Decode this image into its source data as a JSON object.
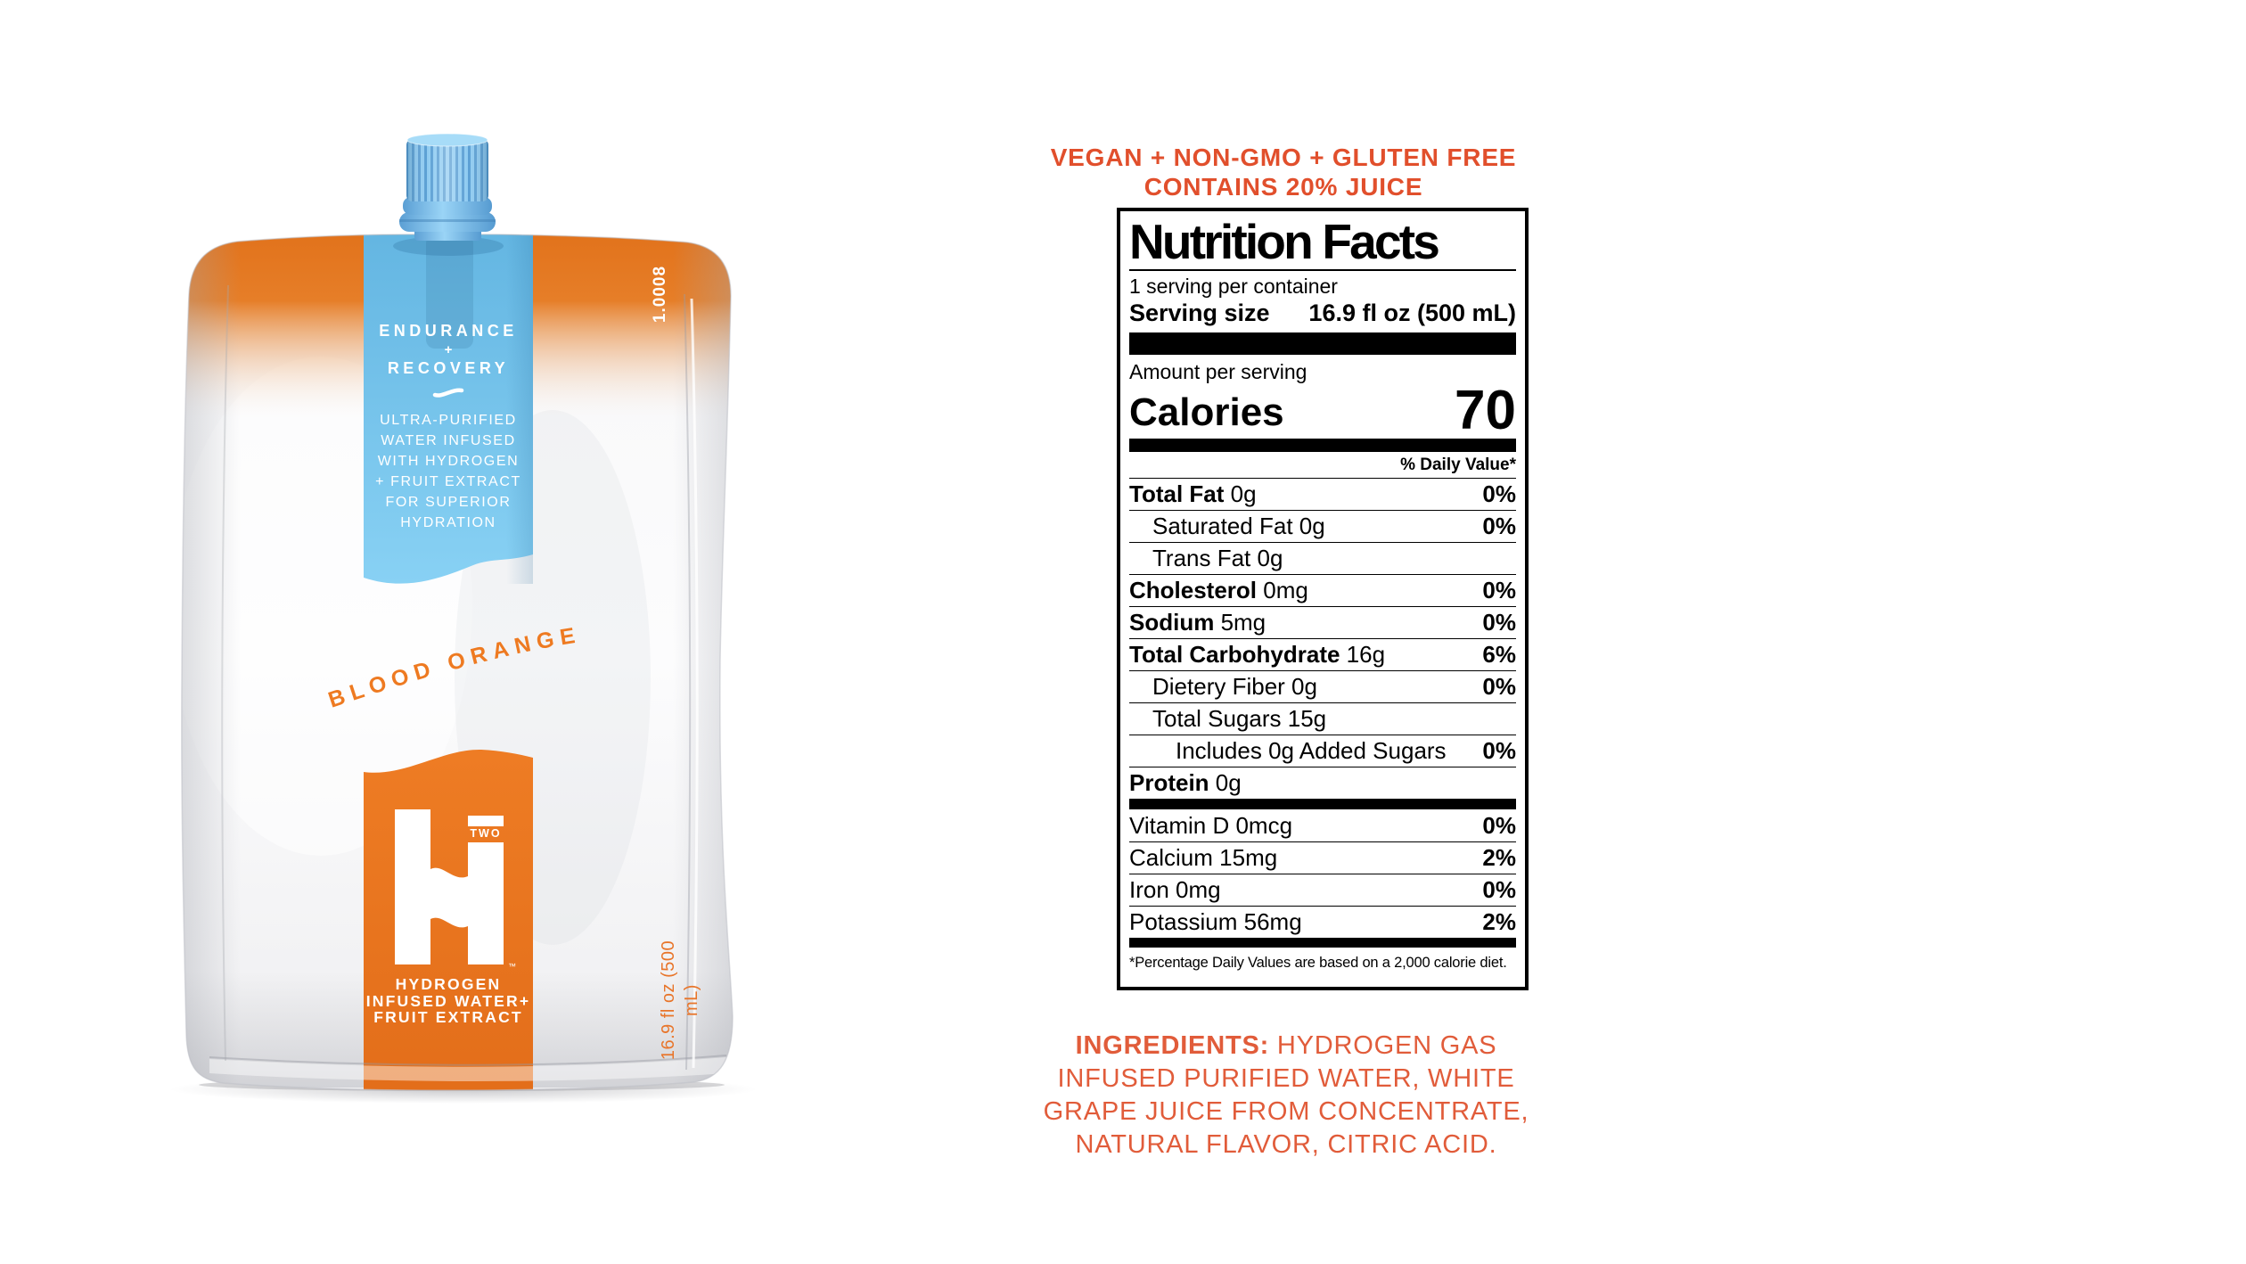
{
  "colors": {
    "brand_orange": "#EC7420",
    "flavor_orange": "#EE7A21",
    "volume_orange": "#E8752A",
    "coral_heading": "#E14F2C",
    "coral_ingredients": "#E15C3A",
    "strip_blue": "#7BC4E8",
    "cap_blue": "#83C6EF",
    "label_black": "#000000"
  },
  "pouch": {
    "code": "1.0008",
    "volume": "16.9 fl oz (500 mL)",
    "panel_title_line1": "ENDURANCE",
    "panel_title_plus": "+",
    "panel_title_line2": "RECOVERY",
    "panel_description": "ULTRA-PURIFIED\nWATER INFUSED\nWITH HYDROGEN\n+ FRUIT EXTRACT\nFOR SUPERIOR\nHYDRATION",
    "flavor": "BLOOD ORANGE",
    "logo_two": "TWO",
    "logo_tm": "™",
    "tagline": "HYDROGEN\nINFUSED WATER+\nFRUIT EXTRACT"
  },
  "header": {
    "line1": "VEGAN + NON-GMO + GLUTEN FREE",
    "line2": "CONTAINS 20% JUICE"
  },
  "nutrition": {
    "title": "Nutrition Facts",
    "servings_per_container": "1 serving per container",
    "serving_size_label": "Serving size",
    "serving_size_value": "16.9 fl oz (500 mL)",
    "amount_per_serving": "Amount per serving",
    "calories_label": "Calories",
    "calories_value": "70",
    "daily_value_header": "% Daily Value*",
    "rows": [
      {
        "name": "Total Fat",
        "amount": "0g",
        "dv": "0%",
        "bold": true,
        "indent": 0
      },
      {
        "name": "Saturated Fat",
        "amount": "0g",
        "dv": "0%",
        "bold": false,
        "indent": 1
      },
      {
        "name": "Trans Fat",
        "amount": "0g",
        "dv": "",
        "bold": false,
        "indent": 1
      },
      {
        "name": "Cholesterol",
        "amount": "0mg",
        "dv": "0%",
        "bold": true,
        "indent": 0
      },
      {
        "name": "Sodium",
        "amount": "5mg",
        "dv": "0%",
        "bold": true,
        "indent": 0
      },
      {
        "name": "Total Carbohydrate",
        "amount": "16g",
        "dv": "6%",
        "bold": true,
        "indent": 0
      },
      {
        "name": "Dietery Fiber",
        "amount": "0g",
        "dv": "0%",
        "bold": false,
        "indent": 1
      },
      {
        "name": "Total Sugars",
        "amount": "15g",
        "dv": "",
        "bold": false,
        "indent": 1
      },
      {
        "name": "Includes 0g Added Sugars",
        "amount": "",
        "dv": "0%",
        "bold": false,
        "indent": 2
      },
      {
        "name": "Protein",
        "amount": "0g",
        "dv": "",
        "bold": true,
        "indent": 0,
        "thick_after": true
      },
      {
        "name": "Vitamin D",
        "amount": "0mcg",
        "dv": "0%",
        "bold": false,
        "indent": 0,
        "no_sep": true
      },
      {
        "name": "Calcium",
        "amount": "15mg",
        "dv": "2%",
        "bold": false,
        "indent": 0
      },
      {
        "name": "Iron",
        "amount": "0mg",
        "dv": "0%",
        "bold": false,
        "indent": 0
      },
      {
        "name": "Potassium",
        "amount": "56mg",
        "dv": "2%",
        "bold": false,
        "indent": 0
      }
    ],
    "footnote": "*Percentage Daily Values are based on a 2,000 calorie diet."
  },
  "ingredients": {
    "prefix": "INGREDIENTS:",
    "rest": " HYDROGEN GAS\nINFUSED PURIFIED WATER, WHITE\nGRAPE JUICE FROM CONCENTRATE,\nNATURAL FLAVOR, CITRIC ACID."
  }
}
